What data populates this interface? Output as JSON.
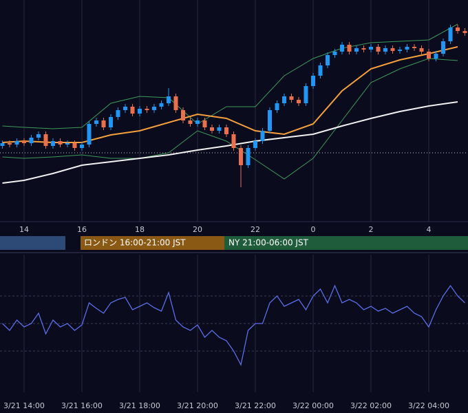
{
  "chart_data": [
    {
      "type": "candlestick",
      "xlim": [
        -0.833,
        15.357
      ],
      "ylim": [
        0,
        322
      ],
      "xticks": [
        {
          "value": 0,
          "label": "14"
        },
        {
          "value": 2,
          "label": "16"
        },
        {
          "value": 4,
          "label": "18"
        },
        {
          "value": 6,
          "label": "20"
        },
        {
          "value": 8,
          "label": "22"
        },
        {
          "value": 10,
          "label": "0"
        },
        {
          "value": 12,
          "label": "2"
        },
        {
          "value": 14,
          "label": "4"
        }
      ],
      "grid": true,
      "hline": 100,
      "up_color": "#2196f3",
      "down_color": "#e8704f",
      "x": [
        -0.75,
        -0.5,
        -0.25,
        0,
        0.25,
        0.5,
        0.75,
        1,
        1.25,
        1.5,
        1.75,
        2,
        2.25,
        2.5,
        2.75,
        3,
        3.25,
        3.5,
        3.75,
        4,
        4.25,
        4.5,
        4.75,
        5,
        5.25,
        5.5,
        5.75,
        6,
        6.25,
        6.5,
        6.75,
        7,
        7.25,
        7.5,
        7.75,
        8,
        8.25,
        8.5,
        8.75,
        9,
        9.25,
        9.5,
        9.75,
        10,
        10.25,
        10.5,
        10.75,
        11,
        11.25,
        11.5,
        11.75,
        12,
        12.25,
        12.5,
        12.75,
        13,
        13.25,
        13.5,
        13.75,
        14,
        14.25,
        14.5,
        14.75,
        15,
        15.25
      ],
      "open": [
        110,
        114,
        112,
        117,
        114,
        122,
        127,
        110,
        117,
        112,
        114,
        107,
        112,
        142,
        147,
        137,
        152,
        162,
        167,
        157,
        164,
        162,
        167,
        172,
        182,
        162,
        147,
        142,
        147,
        137,
        132,
        137,
        127,
        107,
        82,
        107,
        117,
        132,
        162,
        172,
        182,
        177,
        172,
        197,
        212,
        227,
        242,
        247,
        257,
        247,
        252,
        250,
        254,
        247,
        252,
        248,
        250,
        254,
        252,
        247,
        237,
        244,
        262,
        282,
        277
      ],
      "high": [
        118,
        118,
        121,
        121,
        126,
        131,
        131,
        121,
        121,
        118,
        118,
        116,
        146,
        151,
        151,
        156,
        166,
        171,
        171,
        168,
        168,
        171,
        176,
        194,
        186,
        166,
        151,
        151,
        151,
        141,
        141,
        141,
        131,
        111,
        111,
        121,
        136,
        166,
        176,
        186,
        186,
        181,
        201,
        216,
        231,
        246,
        251,
        261,
        261,
        256,
        256,
        258,
        258,
        256,
        256,
        254,
        258,
        258,
        256,
        251,
        248,
        266,
        286,
        286,
        281
      ],
      "low": [
        106,
        108,
        108,
        110,
        110,
        118,
        106,
        106,
        108,
        108,
        103,
        103,
        108,
        138,
        133,
        133,
        148,
        158,
        153,
        153,
        158,
        158,
        163,
        168,
        158,
        143,
        138,
        138,
        133,
        128,
        128,
        123,
        103,
        50,
        78,
        103,
        113,
        128,
        158,
        168,
        173,
        168,
        168,
        193,
        208,
        223,
        238,
        243,
        243,
        243,
        246,
        246,
        243,
        243,
        244,
        244,
        246,
        248,
        243,
        233,
        233,
        240,
        258,
        273,
        270
      ],
      "close": [
        114,
        112,
        117,
        114,
        122,
        127,
        110,
        117,
        112,
        114,
        107,
        112,
        142,
        147,
        137,
        152,
        162,
        167,
        157,
        164,
        162,
        167,
        172,
        182,
        162,
        147,
        142,
        147,
        137,
        132,
        137,
        127,
        107,
        82,
        107,
        117,
        132,
        162,
        172,
        182,
        177,
        172,
        197,
        212,
        227,
        242,
        247,
        257,
        247,
        252,
        250,
        254,
        247,
        252,
        248,
        250,
        254,
        252,
        247,
        237,
        244,
        262,
        282,
        277,
        274
      ],
      "lines": [
        {
          "color": "#3f9a5a",
          "x": [
            -0.75,
            0,
            1,
            2,
            3,
            4,
            5,
            6,
            7,
            8,
            9,
            10,
            11,
            12,
            13,
            14,
            15
          ],
          "values": [
            139,
            137,
            135,
            137,
            172,
            182,
            180,
            142,
            167,
            167,
            212,
            237,
            252,
            260,
            262,
            264,
            287
          ]
        },
        {
          "color": "#3f9a5a",
          "x": [
            -0.75,
            0,
            1,
            2,
            3,
            4,
            5,
            6,
            7,
            8,
            9,
            10,
            11,
            12,
            13,
            14,
            15
          ],
          "values": [
            94,
            92,
            94,
            97,
            92,
            92,
            100,
            132,
            117,
            90,
            62,
            92,
            147,
            202,
            222,
            237,
            234
          ]
        },
        {
          "color": "#f5a03c",
          "x": [
            -0.75,
            0,
            1,
            2,
            3,
            4,
            5,
            6,
            7,
            8,
            9,
            10,
            11,
            12,
            13,
            14,
            15
          ],
          "values": [
            115,
            117,
            115,
            115,
            126,
            132,
            144,
            156,
            150,
            132,
            127,
            142,
            190,
            222,
            235,
            244,
            254
          ]
        },
        {
          "color": "#f2f2f2",
          "x": [
            -0.75,
            0,
            1,
            2,
            3,
            4,
            5,
            6,
            7,
            8,
            9,
            10,
            11,
            12,
            13,
            14,
            15
          ],
          "values": [
            56,
            60,
            70,
            82,
            87,
            92,
            97,
            104,
            110,
            117,
            122,
            127,
            139,
            150,
            160,
            168,
            174
          ]
        }
      ]
    },
    {
      "type": "line",
      "xlim": [
        -0.833,
        15.357
      ],
      "ylim": [
        0,
        100
      ],
      "levels": [
        30,
        50,
        70
      ],
      "xticks": [
        {
          "value": 0,
          "label": "3/21 14:00"
        },
        {
          "value": 2,
          "label": "3/21 16:00"
        },
        {
          "value": 4,
          "label": "3/21 18:00"
        },
        {
          "value": 6,
          "label": "3/21 20:00"
        },
        {
          "value": 8,
          "label": "3/21 22:00"
        },
        {
          "value": 10,
          "label": "3/22 00:00"
        },
        {
          "value": 12,
          "label": "3/22 02:00"
        },
        {
          "value": 14,
          "label": "3/22 04:00"
        }
      ],
      "color": "#5b6ee8",
      "x": [
        -0.75,
        -0.5,
        -0.25,
        0,
        0.25,
        0.5,
        0.75,
        1,
        1.25,
        1.5,
        1.75,
        2,
        2.25,
        2.5,
        2.75,
        3,
        3.25,
        3.5,
        3.75,
        4,
        4.25,
        4.5,
        4.75,
        5,
        5.25,
        5.5,
        5.75,
        6,
        6.25,
        6.5,
        6.75,
        7,
        7.25,
        7.5,
        7.75,
        8,
        8.25,
        8.5,
        8.75,
        9,
        9.25,
        9.5,
        9.75,
        10,
        10.25,
        10.5,
        10.75,
        11,
        11.25,
        11.5,
        11.75,
        12,
        12.25,
        12.5,
        12.75,
        13,
        13.25,
        13.5,
        13.75,
        14,
        14.25,
        14.5,
        14.75,
        15,
        15.25
      ],
      "values": [
        50,
        45,
        52.5,
        47.5,
        50,
        57.5,
        42.5,
        52.5,
        47.5,
        50,
        45,
        49,
        65,
        61,
        57.5,
        65,
        67.5,
        69,
        60,
        62.5,
        65,
        61.5,
        59,
        72.5,
        52.5,
        47.5,
        45,
        49,
        40,
        45,
        40,
        37.5,
        30,
        20,
        45,
        50,
        50,
        65,
        70,
        62.5,
        65,
        67.5,
        60,
        70,
        75,
        65,
        77.5,
        65,
        67.5,
        65,
        60,
        62.5,
        59,
        61,
        57.5,
        60,
        62.5,
        57.5,
        55,
        47.5,
        60,
        70,
        77.5,
        70,
        65
      ]
    }
  ],
  "sessions": [
    "ロンドン 16:00-21:00 JST",
    "NY 21:00-06:00 JST"
  ]
}
